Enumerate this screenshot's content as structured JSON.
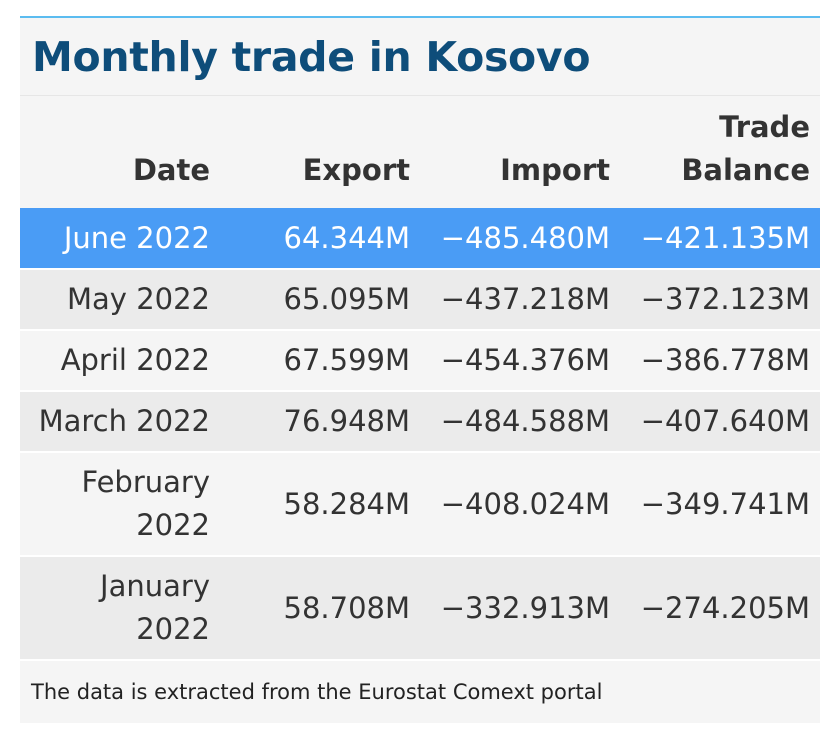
{
  "title": "Monthly trade in Kosovo",
  "columns": {
    "date": "Date",
    "export": "Export",
    "import": "Import",
    "balance_line1": "Trade",
    "balance_line2": "Balance"
  },
  "rows": [
    {
      "date_line1": "June 2022",
      "date_line2": "",
      "export": "64.344M",
      "import": "−485.480M",
      "balance": "−421.135M"
    },
    {
      "date_line1": "May 2022",
      "date_line2": "",
      "export": "65.095M",
      "import": "−437.218M",
      "balance": "−372.123M"
    },
    {
      "date_line1": "April 2022",
      "date_line2": "",
      "export": "67.599M",
      "import": "−454.376M",
      "balance": "−386.778M"
    },
    {
      "date_line1": "March 2022",
      "date_line2": "",
      "export": "76.948M",
      "import": "−484.588M",
      "balance": "−407.640M"
    },
    {
      "date_line1": "February",
      "date_line2": "2022",
      "export": "58.284M",
      "import": "−408.024M",
      "balance": "−349.741M"
    },
    {
      "date_line1": "January",
      "date_line2": "2022",
      "export": "58.708M",
      "import": "−332.913M",
      "balance": "−274.205M"
    }
  ],
  "footer": "The data is extracted from the Eurostat Comext portal",
  "colors": {
    "title": "#0e4d7a",
    "accent_border": "#5bbcf0",
    "highlight_row": "#4a9cf5"
  }
}
